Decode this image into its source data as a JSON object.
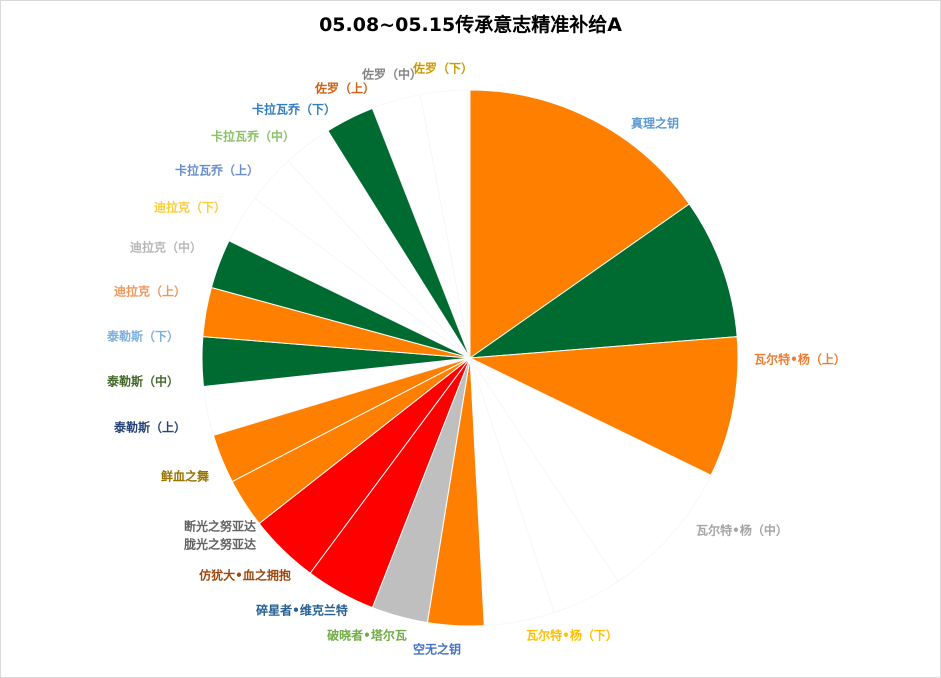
{
  "chart_data": {
    "type": "pie",
    "title": "05.08~05.15传承意志精准补给A",
    "slices": [
      {
        "label": "真理之钥",
        "value": 9.0,
        "color": "#ff7f00",
        "label_color": "#5b9bd5"
      },
      {
        "label": "瓦尔特•杨（上）",
        "value": 5.0,
        "color": "#006b31",
        "label_color": "#ed7d31"
      },
      {
        "label": "瓦尔特•杨（中）",
        "value": 5.0,
        "color": "#ff7f00",
        "label_color": "#a5a5a5"
      },
      {
        "label": "瓦尔特•杨（下）",
        "value": 5.0,
        "color": "#ffffff",
        "label_color": "#ffc000"
      },
      {
        "label": "空无之钥",
        "value": 2.5,
        "color": "#ffffff",
        "label_color": "#4472c4"
      },
      {
        "label": "破晓者•塔尔瓦",
        "value": 2.5,
        "color": "#ffffff",
        "label_color": "#70ad47"
      },
      {
        "label": "碎星者•维克兰特",
        "value": 2.0,
        "color": "#ff7f00",
        "label_color": "#255e91"
      },
      {
        "label": "仿犹大•血之拥抱",
        "value": 2.0,
        "color": "#bfbfbf",
        "label_color": "#9e480e"
      },
      {
        "label": "断光之努亚达",
        "value": 2.5,
        "color": "#ff0000",
        "label_color": "#636363"
      },
      {
        "label": "胧光之努亚达",
        "value": 0,
        "color": "#ff0000",
        "label_color": "#636363"
      },
      {
        "label": "鲜血之舞",
        "value": 2.5,
        "color": "#ff0000",
        "label_color": "#997300"
      },
      {
        "label": "泰勒斯（上）",
        "value": 1.75,
        "color": "#ff7f00",
        "label_color": "#264478"
      },
      {
        "label": "泰勒斯（中）",
        "value": 1.75,
        "color": "#ff7f00",
        "label_color": "#43682b"
      },
      {
        "label": "泰勒斯（下）",
        "value": 1.75,
        "color": "#ffffff",
        "label_color": "#7cafdd"
      },
      {
        "label": "迪拉克（上）",
        "value": 1.75,
        "color": "#006b31",
        "label_color": "#f1975a"
      },
      {
        "label": "迪拉克（中）",
        "value": 1.75,
        "color": "#ff7f00",
        "label_color": "#b7b7b7"
      },
      {
        "label": "迪拉克（下）",
        "value": 1.75,
        "color": "#006b31",
        "label_color": "#ffcd33"
      },
      {
        "label": "卡拉瓦乔（上）",
        "value": 1.75,
        "color": "#ffffff",
        "label_color": "#698ed0"
      },
      {
        "label": "卡拉瓦乔（中）",
        "value": 1.75,
        "color": "#ffffff",
        "label_color": "#8cc168"
      },
      {
        "label": "卡拉瓦乔（下）",
        "value": 1.75,
        "color": "#ffffff",
        "label_color": "#327dc2"
      },
      {
        "label": "佐罗（上）",
        "value": 1.75,
        "color": "#006b31",
        "label_color": "#d26012"
      },
      {
        "label": "佐罗（中）",
        "value": 1.75,
        "color": "#ffffff",
        "label_color": "#848484"
      },
      {
        "label": "佐罗（下）",
        "value": 1.75,
        "color": "#ffffff",
        "label_color": "#cc9a00"
      }
    ],
    "legend": "none",
    "start": "top",
    "direction": "clockwise"
  }
}
